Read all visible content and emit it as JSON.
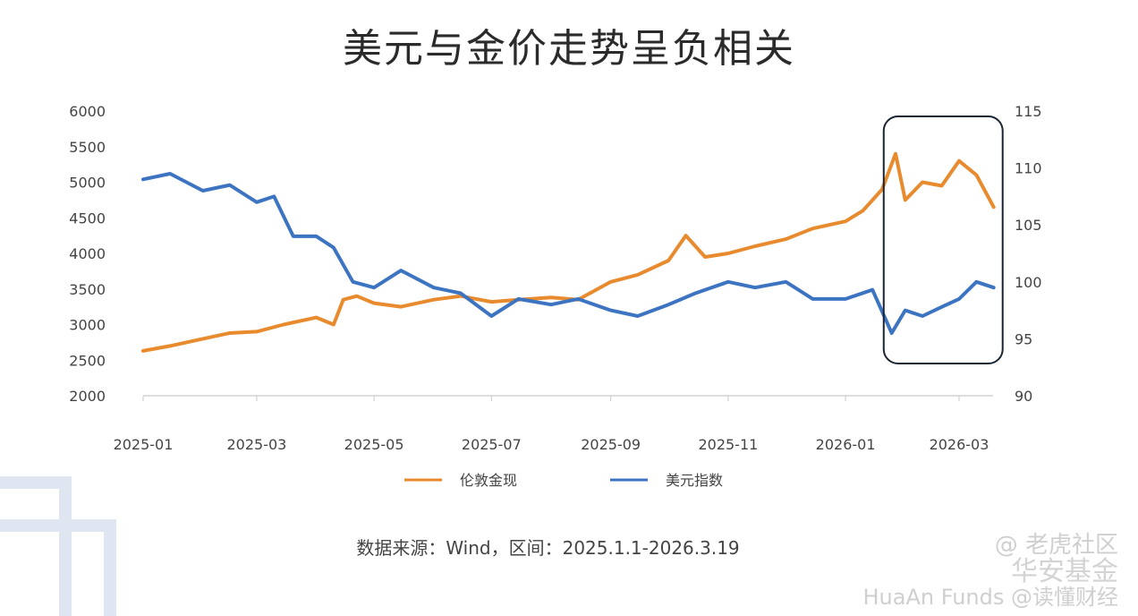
{
  "title": "美元与金价走势呈负相关",
  "source": "数据来源：Wind，区间：2025.1.1-2026.3.19",
  "watermark": {
    "line1": "@ 老虎社区",
    "line2": "华安基金",
    "line3": "HuaAn Funds @读懂财经"
  },
  "colors": {
    "gold": "#e88a2e",
    "usd": "#3d74c2",
    "axis": "#c9c9c9",
    "tick": "#444444",
    "highlight": "#1a2533"
  },
  "chart_data": {
    "type": "line",
    "title": "美元与金价走势呈负相关",
    "x_ticks": [
      "2025-01",
      "2025-03",
      "2025-05",
      "2025-07",
      "2025-09",
      "2025-11",
      "2026-01",
      "2026-03"
    ],
    "x_range": [
      "2025-01",
      "2026-03"
    ],
    "y_left": {
      "range": [
        2000,
        6000
      ],
      "ticks": [
        6000,
        5500,
        5000,
        4500,
        4000,
        3500,
        3000,
        2500,
        2000
      ]
    },
    "y_right": {
      "range": [
        90,
        115
      ],
      "ticks": [
        115,
        110,
        105,
        100,
        95,
        90
      ]
    },
    "grid": false,
    "legend_position": "bottom",
    "highlight_box": {
      "x_from": "2026-02",
      "x_to": "2026-03"
    },
    "series": [
      {
        "name": "伦敦金现",
        "axis": "left",
        "x": [
          "2025-01",
          "2025-01-15",
          "2025-02",
          "2025-02-15",
          "2025-03",
          "2025-03-15",
          "2025-04",
          "2025-04-10",
          "2025-04-15",
          "2025-04-22",
          "2025-05",
          "2025-05-15",
          "2025-06",
          "2025-06-15",
          "2025-07",
          "2025-07-15",
          "2025-08",
          "2025-08-15",
          "2025-09",
          "2025-09-15",
          "2025-10",
          "2025-10-10",
          "2025-10-20",
          "2025-11",
          "2025-11-15",
          "2025-12",
          "2025-12-15",
          "2026-01",
          "2026-01-10",
          "2026-01-20",
          "2026-01-27",
          "2026-02",
          "2026-02-10",
          "2026-02-20",
          "2026-03",
          "2026-03-10",
          "2026-03-19"
        ],
        "values": [
          2630,
          2700,
          2800,
          2880,
          2900,
          3000,
          3100,
          3000,
          3350,
          3400,
          3300,
          3250,
          3350,
          3400,
          3320,
          3350,
          3380,
          3350,
          3600,
          3700,
          3900,
          4250,
          3950,
          4000,
          4100,
          4200,
          4350,
          4450,
          4600,
          4900,
          5400,
          4750,
          5000,
          4950,
          5300,
          5100,
          4650
        ]
      },
      {
        "name": "美元指数",
        "axis": "right",
        "x": [
          "2025-01",
          "2025-01-15",
          "2025-02",
          "2025-02-15",
          "2025-03",
          "2025-03-10",
          "2025-03-20",
          "2025-04",
          "2025-04-10",
          "2025-04-20",
          "2025-05",
          "2025-05-15",
          "2025-06",
          "2025-06-15",
          "2025-07",
          "2025-07-15",
          "2025-08",
          "2025-08-15",
          "2025-09",
          "2025-09-15",
          "2025-10",
          "2025-10-15",
          "2025-11",
          "2025-11-15",
          "2025-12",
          "2025-12-15",
          "2026-01",
          "2026-01-15",
          "2026-01-25",
          "2026-02",
          "2026-02-10",
          "2026-02-20",
          "2026-03",
          "2026-03-10",
          "2026-03-19"
        ],
        "values": [
          109,
          109.5,
          108,
          108.5,
          107,
          107.5,
          104,
          104,
          103,
          100,
          99.5,
          101,
          99.5,
          99,
          97,
          98.5,
          98,
          98.5,
          97.5,
          97,
          98,
          99,
          100,
          99.5,
          100,
          98.5,
          98.5,
          99.3,
          95.5,
          97.5,
          97,
          97.8,
          98.5,
          100,
          99.5
        ]
      }
    ]
  }
}
